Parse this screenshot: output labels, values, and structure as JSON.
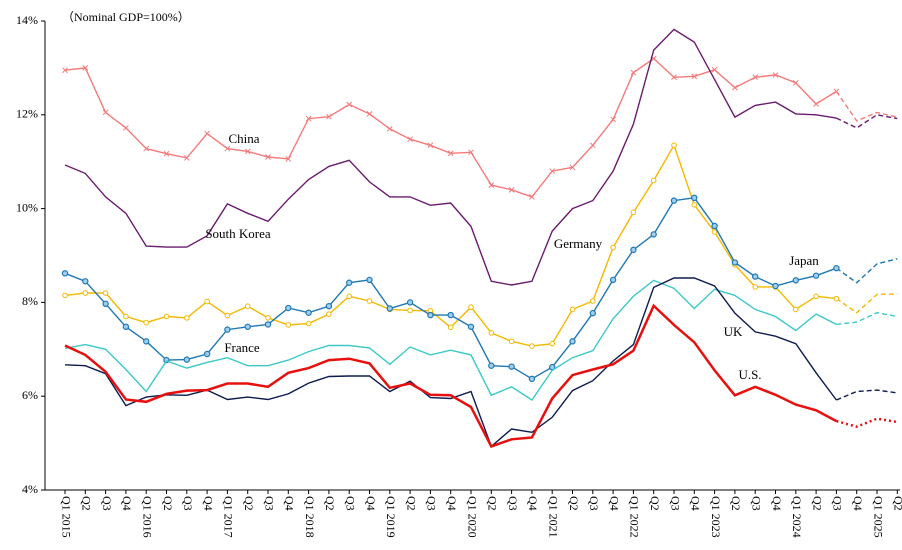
{
  "chart_data": {
    "type": "line",
    "annotation": "（Nominal GDP=100%）",
    "categories": [
      "Q1 2015",
      "Q2",
      "Q3",
      "Q4",
      "Q1 2016",
      "Q2",
      "Q3",
      "Q4",
      "Q1 2017",
      "Q2",
      "Q3",
      "Q4",
      "Q1 2018",
      "Q2",
      "Q3",
      "Q4",
      "Q1 2019",
      "Q2",
      "Q3",
      "Q4",
      "Q1 2020",
      "Q2",
      "Q3",
      "Q4",
      "Q1 2021",
      "Q2",
      "Q3",
      "Q4",
      "Q1 2022",
      "Q2",
      "Q3",
      "Q4",
      "Q1 2023",
      "Q2",
      "Q3",
      "Q4",
      "Q1 2024",
      "Q2",
      "Q3",
      "Q4",
      "Q1 2025",
      "Q2"
    ],
    "ylim": [
      4,
      14
    ],
    "yticks": [
      {
        "value": 4,
        "label": "4%"
      },
      {
        "value": 6,
        "label": "6%"
      },
      {
        "value": 8,
        "label": "8%"
      },
      {
        "value": 10,
        "label": "10%"
      },
      {
        "value": 12,
        "label": "12%"
      },
      {
        "value": 14,
        "label": "14%"
      }
    ],
    "grid": false,
    "series": [
      {
        "name": "China",
        "color": "#f47a7a",
        "marker": "x",
        "projection_style": "dashed",
        "values": [
          12.95,
          13.0,
          12.05,
          11.72,
          11.28,
          11.17,
          11.08,
          11.6,
          11.28,
          11.22,
          11.1,
          11.06,
          11.92,
          11.96,
          12.22,
          12.02,
          11.7,
          11.48,
          11.35,
          11.18,
          11.2,
          10.5,
          10.4,
          10.25,
          10.8,
          10.88,
          11.35,
          11.9,
          12.9,
          13.2,
          12.8,
          12.82,
          12.96,
          12.58,
          12.8,
          12.85,
          12.68,
          12.23,
          12.5,
          null,
          null,
          null
        ],
        "projection": [
          null,
          null,
          null,
          null,
          null,
          null,
          null,
          null,
          null,
          null,
          null,
          null,
          null,
          null,
          null,
          null,
          null,
          null,
          null,
          null,
          null,
          null,
          null,
          null,
          null,
          null,
          null,
          null,
          null,
          null,
          null,
          null,
          null,
          null,
          null,
          null,
          null,
          null,
          12.5,
          11.87,
          12.05,
          11.95
        ]
      },
      {
        "name": "South Korea",
        "color": "#6a1b6e",
        "marker": "none",
        "projection_style": "dashed",
        "values": [
          10.93,
          10.75,
          10.25,
          9.9,
          9.2,
          9.18,
          9.18,
          9.42,
          10.1,
          9.9,
          9.73,
          10.2,
          10.62,
          10.9,
          11.03,
          10.57,
          10.25,
          10.25,
          10.07,
          10.12,
          9.62,
          8.45,
          8.37,
          8.45,
          9.52,
          10.0,
          10.17,
          10.8,
          11.8,
          13.38,
          13.82,
          13.55,
          12.75,
          11.95,
          12.2,
          12.27,
          12.02,
          12.0,
          11.93,
          null,
          null,
          null
        ],
        "projection": [
          null,
          null,
          null,
          null,
          null,
          null,
          null,
          null,
          null,
          null,
          null,
          null,
          null,
          null,
          null,
          null,
          null,
          null,
          null,
          null,
          null,
          null,
          null,
          null,
          null,
          null,
          null,
          null,
          null,
          null,
          null,
          null,
          null,
          null,
          null,
          null,
          null,
          null,
          11.93,
          11.72,
          12.0,
          11.92
        ]
      },
      {
        "name": "Germany",
        "color": "#f5b800",
        "marker": "circle",
        "projection_style": "dashed",
        "values": [
          8.15,
          8.2,
          8.2,
          7.7,
          7.57,
          7.7,
          7.67,
          8.02,
          7.72,
          7.92,
          7.67,
          7.52,
          7.55,
          7.75,
          8.13,
          8.03,
          7.85,
          7.83,
          7.82,
          7.47,
          7.9,
          7.35,
          7.17,
          7.07,
          7.12,
          7.85,
          8.03,
          9.17,
          9.92,
          10.6,
          11.35,
          10.08,
          9.5,
          8.8,
          8.33,
          8.33,
          7.85,
          8.13,
          8.08,
          null,
          null,
          null
        ],
        "projection": [
          null,
          null,
          null,
          null,
          null,
          null,
          null,
          null,
          null,
          null,
          null,
          null,
          null,
          null,
          null,
          null,
          null,
          null,
          null,
          null,
          null,
          null,
          null,
          null,
          null,
          null,
          null,
          null,
          null,
          null,
          null,
          null,
          null,
          null,
          null,
          null,
          null,
          null,
          8.08,
          7.78,
          8.17,
          8.18
        ]
      },
      {
        "name": "Japan",
        "color": "#1f77b4",
        "marker": "dot",
        "projection_style": "dashed",
        "values": [
          8.62,
          8.45,
          7.97,
          7.48,
          7.17,
          6.77,
          6.78,
          6.9,
          7.42,
          7.48,
          7.53,
          7.88,
          7.78,
          7.92,
          8.42,
          8.48,
          7.87,
          8.0,
          7.73,
          7.73,
          7.48,
          6.65,
          6.63,
          6.37,
          6.62,
          7.17,
          7.77,
          8.48,
          9.12,
          9.45,
          10.17,
          10.23,
          9.63,
          8.85,
          8.55,
          8.35,
          8.47,
          8.57,
          8.73,
          null,
          null,
          null
        ],
        "projection": [
          null,
          null,
          null,
          null,
          null,
          null,
          null,
          null,
          null,
          null,
          null,
          null,
          null,
          null,
          null,
          null,
          null,
          null,
          null,
          null,
          null,
          null,
          null,
          null,
          null,
          null,
          null,
          null,
          null,
          null,
          null,
          null,
          null,
          null,
          null,
          null,
          null,
          null,
          8.73,
          8.42,
          8.82,
          8.93
        ]
      },
      {
        "name": "France",
        "color": "#3cc8c8",
        "marker": "none",
        "projection_style": "dashed",
        "values": [
          7.02,
          7.1,
          7.0,
          6.57,
          6.1,
          6.75,
          6.6,
          6.72,
          6.82,
          6.65,
          6.65,
          6.77,
          6.95,
          7.08,
          7.08,
          7.03,
          6.68,
          7.05,
          6.88,
          6.98,
          6.88,
          6.02,
          6.2,
          5.92,
          6.55,
          6.82,
          6.97,
          7.65,
          8.13,
          8.47,
          8.3,
          7.87,
          8.28,
          8.15,
          7.85,
          7.7,
          7.4,
          7.75,
          7.53,
          null,
          null,
          null
        ],
        "projection": [
          null,
          null,
          null,
          null,
          null,
          null,
          null,
          null,
          null,
          null,
          null,
          null,
          null,
          null,
          null,
          null,
          null,
          null,
          null,
          null,
          null,
          null,
          null,
          null,
          null,
          null,
          null,
          null,
          null,
          null,
          null,
          null,
          null,
          null,
          null,
          null,
          null,
          null,
          7.53,
          7.58,
          7.78,
          7.7
        ]
      },
      {
        "name": "UK",
        "color": "#0d1b4f",
        "marker": "none",
        "projection_style": "dashed",
        "values": [
          6.67,
          6.65,
          6.48,
          5.8,
          5.98,
          6.03,
          6.02,
          6.13,
          5.93,
          5.98,
          5.93,
          6.05,
          6.28,
          6.42,
          6.43,
          6.43,
          6.1,
          6.32,
          5.97,
          5.95,
          6.1,
          4.93,
          5.3,
          5.23,
          5.55,
          6.12,
          6.33,
          6.75,
          7.1,
          8.32,
          8.52,
          8.52,
          8.35,
          7.77,
          7.37,
          7.28,
          7.12,
          6.5,
          5.92,
          null,
          null,
          null
        ],
        "projection": [
          null,
          null,
          null,
          null,
          null,
          null,
          null,
          null,
          null,
          null,
          null,
          null,
          null,
          null,
          null,
          null,
          null,
          null,
          null,
          null,
          null,
          null,
          null,
          null,
          null,
          null,
          null,
          null,
          null,
          null,
          null,
          null,
          null,
          null,
          null,
          null,
          null,
          null,
          5.92,
          6.1,
          6.13,
          6.07
        ]
      },
      {
        "name": "U.S.",
        "color": "#e8100e",
        "marker": "none",
        "projection_style": "dotted",
        "values": [
          7.08,
          6.88,
          6.52,
          5.93,
          5.88,
          6.05,
          6.12,
          6.13,
          6.27,
          6.27,
          6.2,
          6.5,
          6.6,
          6.77,
          6.8,
          6.7,
          6.18,
          6.27,
          6.03,
          6.02,
          5.77,
          4.93,
          5.08,
          5.12,
          5.95,
          6.45,
          6.57,
          6.68,
          6.97,
          7.93,
          7.52,
          7.15,
          6.55,
          6.02,
          6.2,
          6.03,
          5.82,
          5.7,
          5.47,
          null,
          null,
          null
        ],
        "projection": [
          null,
          null,
          null,
          null,
          null,
          null,
          null,
          null,
          null,
          null,
          null,
          null,
          null,
          null,
          null,
          null,
          null,
          null,
          null,
          null,
          null,
          null,
          null,
          null,
          null,
          null,
          null,
          null,
          null,
          null,
          null,
          null,
          null,
          null,
          null,
          null,
          null,
          null,
          5.47,
          5.35,
          5.52,
          5.45
        ]
      }
    ]
  }
}
